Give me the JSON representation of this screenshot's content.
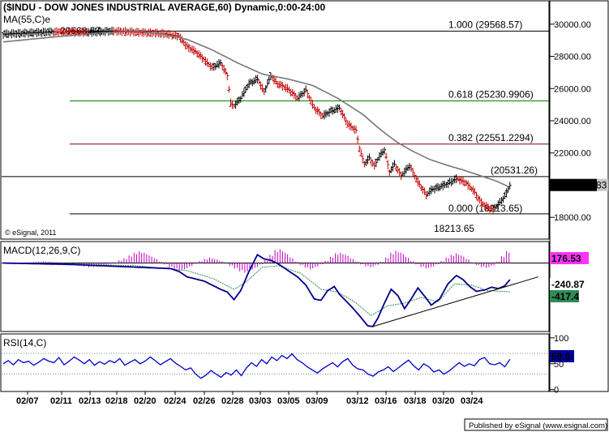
{
  "chart_data": [
    {
      "type": "bar",
      "subtype": "ohlc-bar-chart",
      "title": "($INDU - DOW JONES INDUSTRIAL AVERAGE,60) Dynamic,0:00-24:00",
      "indicator_label": "MA(55,C)e",
      "copyright": "© eSignal, 2011",
      "ylim": [
        16700,
        31400
      ],
      "y_ticks": [
        18000,
        20000,
        22000,
        24000,
        26000,
        28000,
        30000
      ],
      "y_tick_labels": [
        "18000.00",
        "20000.00",
        "22000.00",
        "24000.00",
        "26000.00",
        "28000.00",
        "30000.00"
      ],
      "x_ticks": [
        "02/07",
        "02/11",
        "02/13",
        "02/18",
        "02/20",
        "02/24",
        "02/26",
        "02/28",
        "03/03",
        "03/05",
        "03/09",
        "03/12",
        "03/16",
        "03/18",
        "03/20",
        "03/24"
      ],
      "price_path": [
        [
          0,
          29380
        ],
        [
          15,
          29450
        ],
        [
          30,
          29530
        ],
        [
          50,
          29480
        ],
        [
          65,
          29568
        ],
        [
          80,
          29500
        ],
        [
          95,
          29420
        ],
        [
          105,
          29260
        ],
        [
          110,
          28600
        ],
        [
          115,
          28300
        ],
        [
          120,
          27800
        ],
        [
          125,
          27300
        ],
        [
          130,
          27600
        ],
        [
          134,
          26800
        ],
        [
          136,
          25100
        ],
        [
          138,
          24900
        ],
        [
          142,
          25400
        ],
        [
          147,
          26300
        ],
        [
          152,
          26600
        ],
        [
          156,
          25800
        ],
        [
          160,
          26800
        ],
        [
          164,
          26300
        ],
        [
          170,
          26000
        ],
        [
          176,
          25400
        ],
        [
          181,
          25900
        ],
        [
          186,
          24800
        ],
        [
          191,
          24300
        ],
        [
          196,
          24600
        ],
        [
          201,
          24800
        ],
        [
          206,
          23800
        ],
        [
          211,
          23400
        ],
        [
          213,
          22300
        ],
        [
          216,
          21300
        ],
        [
          219,
          21700
        ],
        [
          222,
          21200
        ],
        [
          225,
          21800
        ],
        [
          228,
          22200
        ],
        [
          231,
          20800
        ],
        [
          234,
          21300
        ],
        [
          238,
          20600
        ],
        [
          243,
          21200
        ],
        [
          248,
          20200
        ],
        [
          253,
          19400
        ],
        [
          256,
          19700
        ],
        [
          261,
          19900
        ],
        [
          266,
          20100
        ],
        [
          271,
          20400
        ],
        [
          276,
          20200
        ],
        [
          281,
          19700
        ],
        [
          286,
          18900
        ],
        [
          290,
          18600
        ],
        [
          293,
          18500
        ],
        [
          296,
          18800
        ],
        [
          300,
          19300
        ],
        [
          303,
          19990
        ]
      ],
      "ma_path": [
        [
          0,
          28900
        ],
        [
          30,
          29200
        ],
        [
          60,
          29480
        ],
        [
          80,
          29560
        ],
        [
          95,
          29400
        ],
        [
          110,
          29050
        ],
        [
          125,
          28400
        ],
        [
          140,
          27600
        ],
        [
          155,
          26900
        ],
        [
          170,
          26600
        ],
        [
          185,
          26200
        ],
        [
          200,
          25400
        ],
        [
          215,
          24400
        ],
        [
          225,
          23500
        ],
        [
          235,
          22700
        ],
        [
          245,
          22100
        ],
        [
          255,
          21600
        ],
        [
          265,
          21250
        ],
        [
          275,
          20950
        ],
        [
          285,
          20600
        ],
        [
          295,
          20250
        ],
        [
          303,
          19870
        ]
      ],
      "fibonacci_levels": [
        {
          "ratio_label": "1.000 (29568.57)",
          "value": 29568.57,
          "color": "#000000"
        },
        {
          "ratio_label": "0.618 (25230.9906)",
          "value": 25230.9906,
          "color": "#008000"
        },
        {
          "ratio_label": "0.382 (22551.2294)",
          "value": 22551.2294,
          "color": "#800000"
        },
        {
          "ratio_label": "0.000 (18213.65)",
          "value": 18213.65,
          "color": "#000000"
        }
      ],
      "horizontal_level": {
        "value": 20531.26,
        "label": "(20531.26)"
      },
      "peak_label": "29568.57",
      "low_label": "18213.65",
      "last_price_label": "19985.66",
      "last_price_suffix": "83",
      "last_price": 19985.66
    },
    {
      "type": "bar",
      "subtype": "macd",
      "label": "MACD(12,26,9,C)",
      "ylim": [
        -980,
        300
      ],
      "histogram_value_label": "176.53",
      "macd_value_label": "-240.87",
      "signal_value_label": "-417.4",
      "histogram": [
        0,
        0,
        0,
        0,
        5,
        10,
        15,
        20,
        25,
        20,
        15,
        10,
        5,
        -5,
        -15,
        -30,
        -50,
        -60,
        -60,
        -50,
        -30,
        -10,
        10,
        40,
        70,
        110,
        150,
        170,
        150,
        110,
        70,
        20,
        -20,
        -60,
        -90,
        -110,
        -90,
        -50,
        -10,
        30,
        60,
        80,
        60,
        30,
        0,
        -40,
        -80,
        -120,
        -140,
        -110,
        -70,
        -20,
        40,
        120,
        190,
        200,
        150,
        80,
        20,
        -30,
        -70,
        -90,
        -60,
        -20,
        30,
        90,
        140,
        150,
        120,
        70,
        20,
        -20,
        -50,
        -60,
        -30,
        20,
        80,
        150,
        180,
        150,
        90,
        30,
        -20,
        -60,
        -80,
        -60,
        -20,
        30,
        80,
        120,
        140,
        110,
        60,
        10,
        -30,
        -60,
        -70,
        -40,
        20,
        100,
        176
      ],
      "macd_line": [
        [
          0,
          0
        ],
        [
          20,
          -10
        ],
        [
          40,
          -20
        ],
        [
          60,
          -40
        ],
        [
          80,
          -60
        ],
        [
          100,
          -80
        ],
        [
          105,
          -120
        ],
        [
          110,
          -200
        ],
        [
          120,
          -260
        ],
        [
          130,
          -380
        ],
        [
          134,
          -420
        ],
        [
          138,
          -530
        ],
        [
          142,
          -400
        ],
        [
          147,
          -120
        ],
        [
          152,
          120
        ],
        [
          156,
          60
        ],
        [
          160,
          40
        ],
        [
          165,
          -20
        ],
        [
          171,
          -120
        ],
        [
          176,
          -200
        ],
        [
          181,
          -320
        ],
        [
          186,
          -520
        ],
        [
          190,
          -540
        ],
        [
          194,
          -400
        ],
        [
          198,
          -340
        ],
        [
          201,
          -450
        ],
        [
          205,
          -550
        ],
        [
          209,
          -650
        ],
        [
          214,
          -790
        ],
        [
          218,
          -910
        ],
        [
          221,
          -920
        ],
        [
          224,
          -800
        ],
        [
          228,
          -580
        ],
        [
          232,
          -380
        ],
        [
          236,
          -470
        ],
        [
          240,
          -660
        ],
        [
          244,
          -520
        ],
        [
          248,
          -360
        ],
        [
          252,
          -480
        ],
        [
          256,
          -610
        ],
        [
          261,
          -520
        ],
        [
          266,
          -300
        ],
        [
          271,
          -180
        ],
        [
          275,
          -240
        ],
        [
          279,
          -340
        ],
        [
          283,
          -410
        ],
        [
          288,
          -390
        ],
        [
          292,
          -350
        ],
        [
          296,
          -370
        ],
        [
          300,
          -330
        ],
        [
          303,
          -240
        ]
      ],
      "signal_line": [
        [
          0,
          0
        ],
        [
          40,
          -10
        ],
        [
          80,
          -40
        ],
        [
          110,
          -110
        ],
        [
          125,
          -220
        ],
        [
          138,
          -380
        ],
        [
          145,
          -280
        ],
        [
          155,
          -60
        ],
        [
          165,
          -40
        ],
        [
          178,
          -150
        ],
        [
          190,
          -380
        ],
        [
          200,
          -420
        ],
        [
          210,
          -560
        ],
        [
          220,
          -760
        ],
        [
          230,
          -620
        ],
        [
          240,
          -580
        ],
        [
          250,
          -500
        ],
        [
          260,
          -560
        ],
        [
          270,
          -300
        ],
        [
          280,
          -320
        ],
        [
          290,
          -400
        ],
        [
          303,
          -417
        ]
      ],
      "trendline": [
        [
          221,
          -920
        ],
        [
          320,
          -200
        ]
      ]
    },
    {
      "type": "line",
      "subtype": "rsi",
      "label": "RSI(14,C)",
      "ylim": [
        -2,
        106
      ],
      "y_ticks": [
        0,
        50,
        100
      ],
      "y_tick_labels": [
        "0",
        "50",
        "100"
      ],
      "guide_levels": [
        70,
        30
      ],
      "value_label": "58.6",
      "rsi_values": [
        50,
        56,
        48,
        58,
        52,
        55,
        47,
        53,
        60,
        55,
        52,
        62,
        48,
        55,
        63,
        57,
        50,
        58,
        47,
        54,
        49,
        56,
        52,
        60,
        47,
        53,
        58,
        50,
        55,
        63,
        56,
        48,
        54,
        60,
        51,
        45,
        38,
        42,
        30,
        22,
        28,
        37,
        30,
        24,
        33,
        28,
        38,
        27,
        42,
        52,
        45,
        58,
        50,
        63,
        56,
        66,
        60,
        69,
        58,
        52,
        44,
        38,
        32,
        40,
        46,
        52,
        44,
        54,
        60,
        47,
        40,
        38,
        30,
        26,
        34,
        38,
        44,
        35,
        42,
        50,
        57,
        46,
        38,
        50,
        44,
        34,
        38,
        30,
        36,
        44,
        52,
        45,
        50,
        46,
        58,
        62,
        50,
        48,
        52,
        44,
        58.6
      ]
    }
  ],
  "footer": {
    "published_by": "Published by eSignal (www.esignal.com)"
  }
}
